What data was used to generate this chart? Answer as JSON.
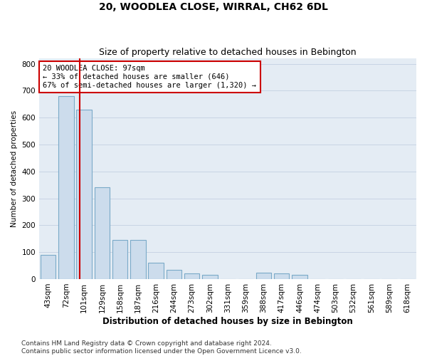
{
  "title": "20, WOODLEA CLOSE, WIRRAL, CH62 6DL",
  "subtitle": "Size of property relative to detached houses in Bebington",
  "xlabel": "Distribution of detached houses by size in Bebington",
  "ylabel": "Number of detached properties",
  "categories": [
    "43sqm",
    "72sqm",
    "101sqm",
    "129sqm",
    "158sqm",
    "187sqm",
    "216sqm",
    "244sqm",
    "273sqm",
    "302sqm",
    "331sqm",
    "359sqm",
    "388sqm",
    "417sqm",
    "446sqm",
    "474sqm",
    "503sqm",
    "532sqm",
    "561sqm",
    "589sqm",
    "618sqm"
  ],
  "values": [
    90,
    680,
    630,
    340,
    145,
    145,
    60,
    35,
    20,
    15,
    0,
    0,
    25,
    20,
    15,
    0,
    0,
    0,
    0,
    0,
    0
  ],
  "bar_color": "#ccdcec",
  "bar_edge_color": "#7aaac8",
  "property_line_x": 1.75,
  "annotation_text": "20 WOODLEA CLOSE: 97sqm\n← 33% of detached houses are smaller (646)\n67% of semi-detached houses are larger (1,320) →",
  "annotation_box_color": "#ffffff",
  "annotation_box_edge": "#cc0000",
  "property_line_color": "#cc0000",
  "ylim": [
    0,
    820
  ],
  "yticks": [
    0,
    100,
    200,
    300,
    400,
    500,
    600,
    700,
    800
  ],
  "grid_color": "#c8d4e4",
  "bg_color": "#e4ecf4",
  "footer": "Contains HM Land Registry data © Crown copyright and database right 2024.\nContains public sector information licensed under the Open Government Licence v3.0.",
  "title_fontsize": 10,
  "subtitle_fontsize": 9,
  "xlabel_fontsize": 8.5,
  "ylabel_fontsize": 7.5,
  "tick_fontsize": 7.5,
  "footer_fontsize": 6.5
}
